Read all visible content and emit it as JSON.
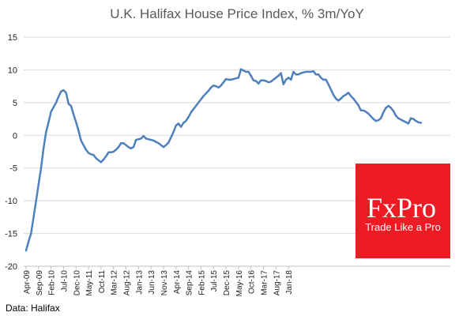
{
  "chart_data": {
    "type": "line",
    "title": "U.K. Halifax House Price Index, % 3m/YoY",
    "source": "Data: Halifax",
    "ylim": [
      -20,
      15
    ],
    "y_ticks": [
      15,
      10,
      5,
      0,
      -5,
      -10,
      -15,
      -20
    ],
    "x_tick_labels": [
      "Apr-09",
      "Sep-09",
      "Feb-10",
      "Jul-10",
      "Dec-10",
      "May-11",
      "Oct-11",
      "Mar-12",
      "Aug-12",
      "Jan-13",
      "Jun-13",
      "Nov-13",
      "Apr-14",
      "Sep-14",
      "Feb-15",
      "Jul-15",
      "Dec-15",
      "May-16",
      "Oct-16",
      "Mar-17",
      "Aug-17",
      "Jan-18"
    ],
    "line_color": "#4f81bd",
    "grid": true,
    "legend": "none",
    "series": [
      {
        "start": "Apr-09",
        "frequency": "monthly",
        "values": [
          -17.6,
          -16.2,
          -15.0,
          -12.5,
          -10.0,
          -7.5,
          -5.0,
          -2.0,
          0.5,
          2.0,
          3.6,
          4.3,
          5.0,
          5.9,
          6.7,
          6.9,
          6.5,
          4.8,
          4.5,
          3.2,
          2.0,
          0.7,
          -0.8,
          -1.5,
          -2.2,
          -2.7,
          -2.9,
          -3.0,
          -3.5,
          -3.8,
          -4.1,
          -3.7,
          -3.2,
          -2.6,
          -2.6,
          -2.5,
          -2.2,
          -1.8,
          -1.2,
          -1.2,
          -1.5,
          -1.8,
          -2.0,
          -1.8,
          -0.7,
          -0.6,
          -0.5,
          -0.1,
          -0.5,
          -0.6,
          -0.7,
          -0.8,
          -1.0,
          -1.2,
          -1.5,
          -1.8,
          -1.5,
          -1.1,
          -0.3,
          0.5,
          1.5,
          1.8,
          1.3,
          1.9,
          2.2,
          2.8,
          3.5,
          4.0,
          4.5,
          5.0,
          5.5,
          6.0,
          6.4,
          6.8,
          7.3,
          7.6,
          7.5,
          7.3,
          7.6,
          8.1,
          8.6,
          8.5,
          8.5,
          8.6,
          8.7,
          8.8,
          10.1,
          9.9,
          9.7,
          9.7,
          9.1,
          8.4,
          8.3,
          7.9,
          8.4,
          8.4,
          8.3,
          8.1,
          8.2,
          8.5,
          8.8,
          9.1,
          9.5,
          7.8,
          8.5,
          8.8,
          8.5,
          9.7,
          9.3,
          9.3,
          9.5,
          9.6,
          9.7,
          9.7,
          9.7,
          9.8,
          9.3,
          9.3,
          8.8,
          8.5,
          8.5,
          7.8,
          7.0,
          6.2,
          5.6,
          5.3,
          5.6,
          6.0,
          6.2,
          6.5,
          6.0,
          5.6,
          5.1,
          4.6,
          3.8,
          3.8,
          3.6,
          3.3,
          2.9,
          2.5,
          2.2,
          2.3,
          2.6,
          3.5,
          4.2,
          4.5,
          4.2,
          3.7,
          3.0,
          2.6,
          2.4,
          2.2,
          2.0,
          1.8,
          2.6,
          2.5,
          2.2,
          2.0,
          1.9
        ]
      }
    ]
  },
  "branding": {
    "name": "FxPro",
    "tagline": "Trade Like a Pro",
    "color": "#ed1c24"
  }
}
